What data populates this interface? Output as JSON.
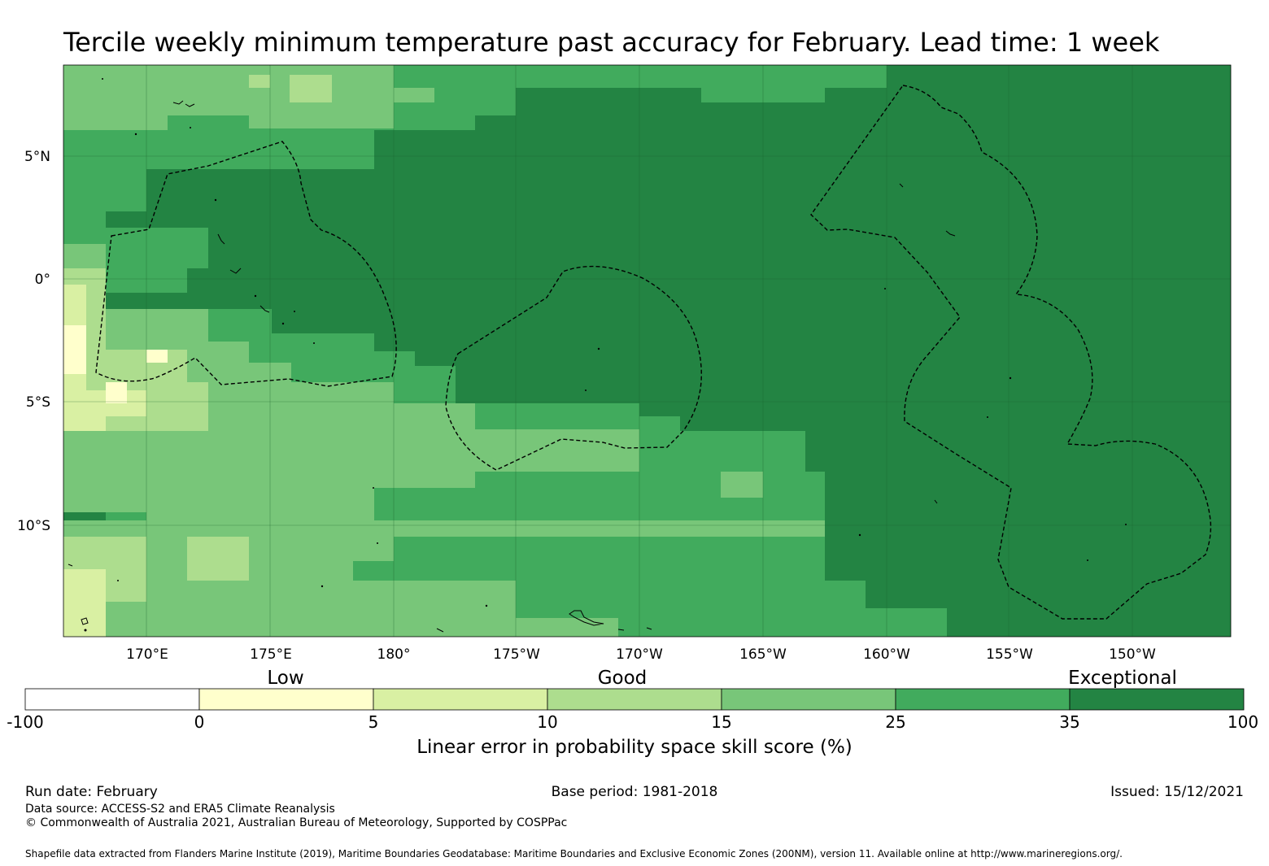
{
  "title": "Tercile weekly minimum temperature past accuracy for February. Lead time: 1 week",
  "map": {
    "lat_labels": [
      "5°N",
      "0°",
      "5°S",
      "10°S"
    ],
    "lon_labels": [
      "170°E",
      "175°E",
      "180°",
      "175°W",
      "170°W",
      "165°W",
      "160°W",
      "155°W",
      "150°W"
    ],
    "base_color": "#238443",
    "grid": "on"
  },
  "colorbar": {
    "categories": [
      "Low",
      "Good",
      "Exceptional"
    ],
    "ticks": [
      "-100",
      "0",
      "5",
      "10",
      "15",
      "25",
      "35",
      "100"
    ],
    "colors": [
      "#ffffff",
      "#ffffcc",
      "#d9f0a3",
      "#addd8e",
      "#78c679",
      "#41ab5d",
      "#238443"
    ],
    "label": "Linear error in probability space skill score (%)"
  },
  "footer": {
    "run_date": "Run date: February",
    "base_period": "Base period: 1981-2018",
    "issued": "Issued: 15/12/2021",
    "data_source": "Data source: ACCESS-S2 and ERA5 Climate Reanalysis",
    "copyright": "© Commonwealth of Australia 2021, Australian Bureau of Meteorology, Supported by COSPPac",
    "shapefile": "Shapefile data extracted from Flanders Marine Institute (2019), Maritime Boundaries Geodatabase: Maritime Boundaries and Exclusive Economic Zones (200NM), version 11. Available online at http://www.marineregions.org/."
  }
}
